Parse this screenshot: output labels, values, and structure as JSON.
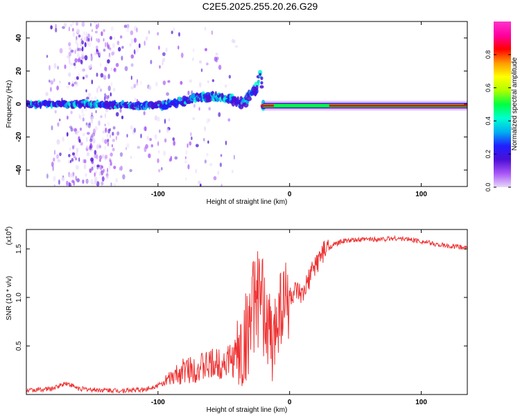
{
  "figure_title": "C2E5.2025.255.20.26.G29",
  "chart_data": [
    {
      "type": "heatmap",
      "xlabel": "Height of straight line (km)",
      "ylabel": "Frequency (Hz)",
      "xlim": [
        -200,
        135
      ],
      "ylim": [
        -50,
        50
      ],
      "xticks": [
        -100,
        0,
        100
      ],
      "xtick_labels": [
        "-100",
        "0",
        "100"
      ],
      "yticks": [
        -40,
        -20,
        0,
        20,
        40
      ],
      "ytick_labels": [
        "-40",
        "-20",
        "0",
        "20",
        "40"
      ],
      "colorbar": {
        "label": "Normalized spectral amplitude",
        "range": [
          0,
          1
        ],
        "ticks": [
          0.0,
          0.2,
          0.4,
          0.6,
          0.8
        ],
        "tick_labels": [
          "0.0",
          "0.2",
          "0.4",
          "0.6",
          "0.8"
        ],
        "colors": [
          "#e8d8f8",
          "#a855f7",
          "#4b0fd6",
          "#1f1fff",
          "#00b0f0",
          "#00ffd0",
          "#00ff40",
          "#b0ff00",
          "#ffff00",
          "#ff9900",
          "#ff0000",
          "#ff00a0",
          "#ff33cc"
        ]
      },
      "center_line": [
        {
          "x": -200,
          "f": 0.0
        },
        {
          "x": -150,
          "f": 0.0
        },
        {
          "x": -120,
          "f": -1.0
        },
        {
          "x": -100,
          "f": -1.0
        },
        {
          "x": -80,
          "f": 2.0
        },
        {
          "x": -60,
          "f": 5.0
        },
        {
          "x": -45,
          "f": 3.0
        },
        {
          "x": -35,
          "f": 0.0
        },
        {
          "x": -25,
          "f": 10.0
        },
        {
          "x": -22,
          "f": 22.0
        },
        {
          "x": -20,
          "f": 0.0
        },
        {
          "x": 135,
          "f": -1.0
        }
      ]
    },
    {
      "type": "line",
      "xlabel": "Height of straight line (km)",
      "ylabel": "SNR (10 * v/v)",
      "scale_note": "(x10",
      "scale_exponent": "4",
      "xlim": [
        -200,
        135
      ],
      "ylim": [
        0,
        1.7
      ],
      "xticks": [
        -100,
        0,
        100
      ],
      "xtick_labels": [
        "-100",
        "0",
        "100"
      ],
      "yticks": [
        0.5,
        1.0,
        1.5
      ],
      "ytick_labels": [
        "0.5",
        "1.0",
        "1.5"
      ],
      "series": [
        {
          "name": "SNR",
          "color": "#ee3333",
          "x": [
            -200,
            -180,
            -170,
            -160,
            -150,
            -130,
            -110,
            -95,
            -80,
            -60,
            -45,
            -35,
            -30,
            -25,
            -20,
            -15,
            -12,
            -10,
            -5,
            0,
            5,
            10,
            15,
            20,
            25,
            30,
            40,
            50,
            60,
            70,
            80,
            90,
            100,
            110,
            120,
            135
          ],
          "y": [
            0.04,
            0.06,
            0.12,
            0.06,
            0.05,
            0.04,
            0.05,
            0.12,
            0.25,
            0.3,
            0.35,
            0.45,
            0.8,
            1.0,
            0.9,
            0.6,
            0.4,
            0.9,
            0.95,
            1.0,
            1.05,
            1.0,
            1.2,
            1.35,
            1.45,
            1.52,
            1.58,
            1.59,
            1.6,
            1.6,
            1.61,
            1.6,
            1.58,
            1.55,
            1.53,
            1.51
          ]
        }
      ]
    }
  ]
}
